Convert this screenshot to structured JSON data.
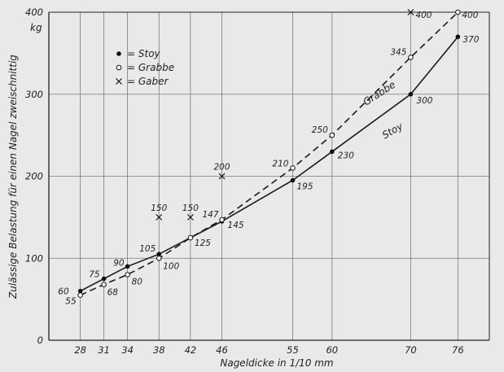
{
  "chart_data": {
    "type": "line",
    "title": "",
    "xlabel": "Nageldicke in 1/10 mm",
    "ylabel": "Zulässige Belastung für einen Nagel zweischnittig",
    "y_unit": "kg",
    "x_ticks": [
      28,
      31,
      34,
      38,
      42,
      46,
      55,
      60,
      70,
      76
    ],
    "y_ticks": [
      0,
      100,
      200,
      300,
      400
    ],
    "xlim": [
      24,
      80
    ],
    "ylim": [
      0,
      400
    ],
    "grid": true,
    "legend_position": "top-left",
    "series": [
      {
        "name": "Stoy",
        "marker": "filled-dot",
        "line": "solid",
        "x": [
          28,
          31,
          34,
          38,
          42,
          46,
          55,
          60,
          70,
          76
        ],
        "y": [
          60,
          75,
          90,
          105,
          125,
          145,
          195,
          230,
          300,
          370
        ],
        "point_labels": [
          "60",
          "75",
          "90",
          "105",
          "125",
          "145",
          "195",
          "230",
          "300",
          "370"
        ]
      },
      {
        "name": "Grabbe",
        "marker": "open-circle",
        "line": "dashed",
        "x": [
          28,
          31,
          34,
          38,
          42,
          46,
          55,
          60,
          70,
          76
        ],
        "y": [
          55,
          68,
          80,
          100,
          125,
          147,
          210,
          250,
          345,
          400
        ],
        "point_labels": [
          "55",
          "68",
          "80",
          "100",
          "",
          "147",
          "210",
          "250",
          "345",
          "400"
        ]
      },
      {
        "name": "Gaber",
        "marker": "cross",
        "line": "none",
        "x": [
          38,
          42,
          46,
          70
        ],
        "y": [
          150,
          150,
          200,
          400
        ],
        "point_labels": [
          "150",
          "150",
          "200",
          "400"
        ]
      }
    ],
    "curve_labels": [
      "Grabbe",
      "Stoy"
    ]
  }
}
